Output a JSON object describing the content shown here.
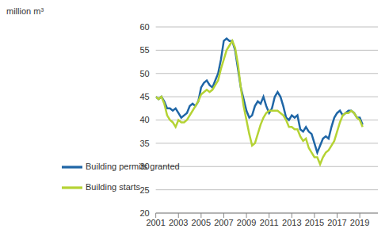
{
  "chart_data": {
    "type": "line",
    "y_label": "million m³",
    "x": [
      2001,
      2001.25,
      2001.5,
      2001.75,
      2002,
      2002.25,
      2002.5,
      2002.75,
      2003,
      2003.25,
      2003.5,
      2003.75,
      2004,
      2004.25,
      2004.5,
      2004.75,
      2005,
      2005.25,
      2005.5,
      2005.75,
      2006,
      2006.25,
      2006.5,
      2006.75,
      2007,
      2007.25,
      2007.5,
      2007.75,
      2008,
      2008.25,
      2008.5,
      2008.75,
      2009,
      2009.25,
      2009.5,
      2009.75,
      2010,
      2010.25,
      2010.5,
      2010.75,
      2011,
      2011.25,
      2011.5,
      2011.75,
      2012,
      2012.25,
      2012.5,
      2012.75,
      2013,
      2013.25,
      2013.5,
      2013.75,
      2014,
      2014.25,
      2014.5,
      2014.75,
      2015,
      2015.25,
      2015.5,
      2015.75,
      2016,
      2016.25,
      2016.5,
      2016.75,
      2017,
      2017.25,
      2017.5,
      2017.75,
      2018,
      2018.25,
      2018.5,
      2018.75,
      2019,
      2019.25
    ],
    "series": [
      {
        "name": "Building permits granted",
        "color": "#1f66a6",
        "values": [
          45,
          44.5,
          45,
          44,
          42.5,
          42.5,
          42,
          42.5,
          41.5,
          40.5,
          41,
          41.5,
          43,
          43.5,
          43,
          44,
          47,
          48,
          48.5,
          47.5,
          47,
          48.5,
          50,
          53,
          57,
          57.5,
          57,
          57,
          55,
          51,
          47,
          44.5,
          42,
          40.5,
          41,
          43,
          44,
          43.5,
          45,
          43,
          41.5,
          42.5,
          45,
          46,
          45,
          43,
          40.5,
          40,
          41,
          40.5,
          41,
          38,
          37.5,
          38.5,
          37.5,
          37,
          35,
          33,
          34.5,
          36,
          36.5,
          36,
          38.5,
          40.5,
          41.5,
          42,
          41,
          41.5,
          42,
          42,
          41.5,
          40.5,
          40.5,
          39
        ]
      },
      {
        "name": "Building starts",
        "color": "#b5d334",
        "values": [
          45,
          44.5,
          45,
          43.5,
          41,
          40,
          39.5,
          38.5,
          40,
          39.5,
          39.5,
          40,
          41,
          42,
          43,
          44,
          45.5,
          46,
          46.5,
          46,
          46.5,
          47.5,
          48.5,
          51,
          53,
          55,
          56,
          57,
          55.5,
          52,
          47,
          43,
          40,
          37,
          34.5,
          35,
          37,
          39,
          40.5,
          41.5,
          42,
          42,
          42,
          42,
          41.5,
          41,
          40,
          38.5,
          38.5,
          38,
          38,
          36.5,
          35.5,
          36,
          34,
          33,
          32,
          32,
          30.5,
          32,
          33,
          33.5,
          34.5,
          35.5,
          37.5,
          39.5,
          41,
          41.5,
          41.5,
          42,
          41.5,
          40.5,
          40,
          38.5
        ]
      }
    ],
    "xlim": [
      2001,
      2020.6
    ],
    "xticks": [
      2001,
      2003,
      2005,
      2007,
      2009,
      2011,
      2013,
      2015,
      2017,
      2019
    ],
    "ylim": [
      20,
      60
    ],
    "yticks": [
      20,
      25,
      30,
      35,
      40,
      45,
      50,
      55,
      60
    ],
    "grid": true,
    "legend": "lower left"
  }
}
